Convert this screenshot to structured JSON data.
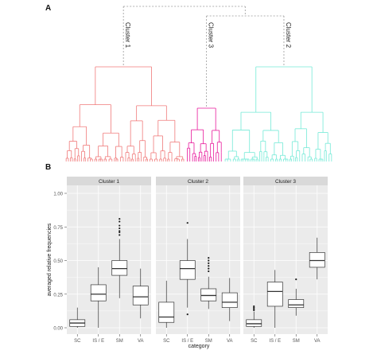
{
  "panel_labels": {
    "a": "A",
    "b": "B"
  },
  "colors": {
    "cluster1": "#f07a7a",
    "cluster3": "#e8189b",
    "cluster2": "#74ead7",
    "connector": "#999999",
    "strip_bg": "#d9d9d9",
    "panel_bg": "#ebebeb",
    "grid": "#ffffff",
    "box_stroke": "#333333"
  },
  "dendrogram": {
    "cluster_labels": [
      "Cluster 1",
      "Cluster 3",
      "Cluster 2"
    ]
  },
  "chart_data": {
    "type": "boxplot",
    "facets": [
      "Cluster 1",
      "Cluster 2",
      "Cluster 3"
    ],
    "categories": [
      "SC",
      "IS / E",
      "SM",
      "VA"
    ],
    "xlabel": "category",
    "ylabel": "averaged relative frequencies",
    "ylim": [
      0,
      1
    ],
    "yticks": [
      "0.00",
      "0.25",
      "0.50",
      "0.75",
      "1.00"
    ],
    "ytick_values": [
      0,
      0.25,
      0.5,
      0.75,
      1.0
    ],
    "grid": true,
    "boxes": [
      [
        {
          "min": 0.0,
          "q1": 0.01,
          "median": 0.035,
          "q3": 0.06,
          "max": 0.15,
          "outliers": []
        },
        {
          "min": 0.0,
          "q1": 0.2,
          "median": 0.25,
          "q3": 0.32,
          "max": 0.45,
          "outliers": []
        },
        {
          "min": 0.22,
          "q1": 0.39,
          "median": 0.44,
          "q3": 0.5,
          "max": 0.66,
          "outliers": [
            0.69,
            0.71,
            0.72,
            0.74,
            0.76,
            0.79,
            0.81
          ]
        },
        {
          "min": 0.07,
          "q1": 0.17,
          "median": 0.23,
          "q3": 0.31,
          "max": 0.44,
          "outliers": []
        }
      ],
      [
        {
          "min": 0.0,
          "q1": 0.04,
          "median": 0.08,
          "q3": 0.19,
          "max": 0.35,
          "outliers": []
        },
        {
          "min": 0.15,
          "q1": 0.36,
          "median": 0.44,
          "q3": 0.5,
          "max": 0.66,
          "outliers": [
            0.1,
            0.78
          ]
        },
        {
          "min": 0.14,
          "q1": 0.2,
          "median": 0.24,
          "q3": 0.29,
          "max": 0.38,
          "outliers": [
            0.42,
            0.44,
            0.46,
            0.48,
            0.5,
            0.52
          ]
        },
        {
          "min": 0.05,
          "q1": 0.15,
          "median": 0.19,
          "q3": 0.26,
          "max": 0.37,
          "outliers": []
        }
      ],
      [
        {
          "min": 0.0,
          "q1": 0.01,
          "median": 0.03,
          "q3": 0.06,
          "max": 0.12,
          "outliers": [
            0.13,
            0.14,
            0.15,
            0.16
          ]
        },
        {
          "min": 0.0,
          "q1": 0.16,
          "median": 0.27,
          "q3": 0.34,
          "max": 0.43,
          "outliers": []
        },
        {
          "min": 0.09,
          "q1": 0.15,
          "median": 0.17,
          "q3": 0.21,
          "max": 0.29,
          "outliers": [
            0.36
          ]
        },
        {
          "min": 0.36,
          "q1": 0.45,
          "median": 0.5,
          "q3": 0.56,
          "max": 0.67,
          "outliers": []
        }
      ]
    ]
  }
}
